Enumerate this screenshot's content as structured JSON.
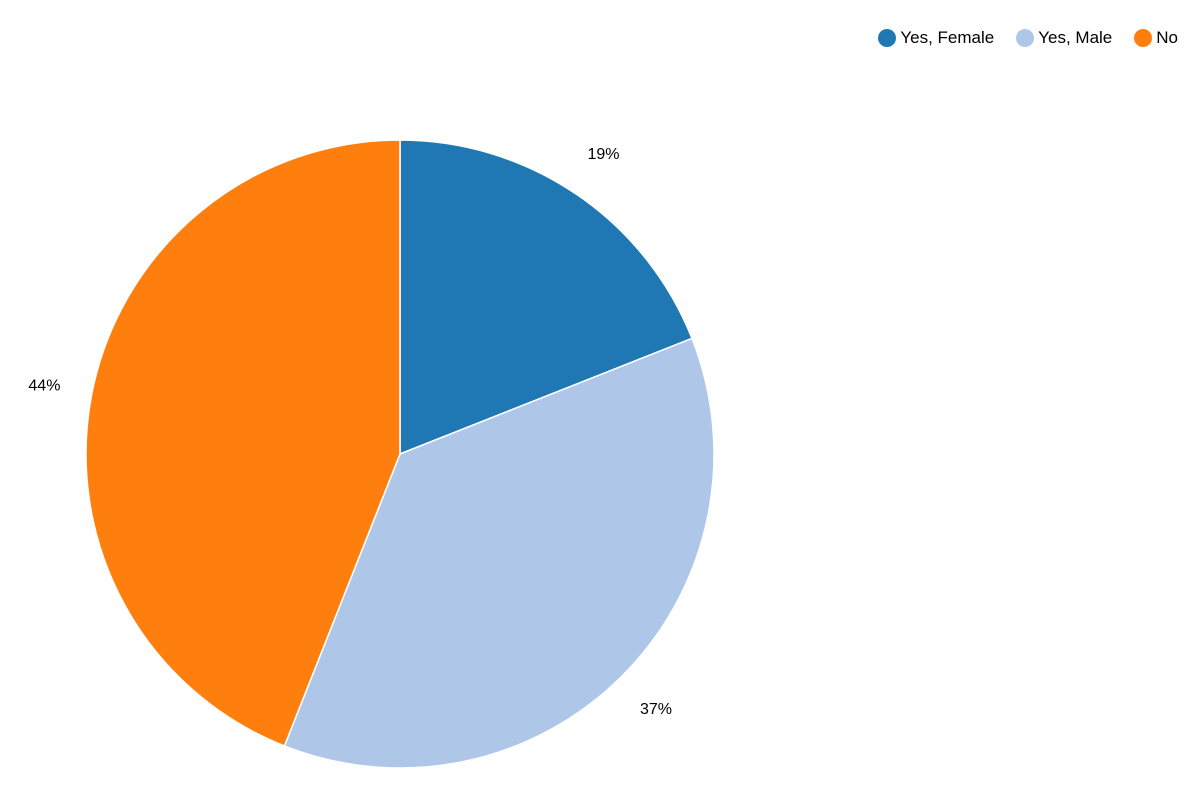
{
  "chart_data": {
    "type": "pie",
    "categories": [
      "Yes, Female",
      "Yes, Male",
      "No"
    ],
    "values": [
      19,
      37,
      44
    ],
    "labels": [
      "19%",
      "37%",
      "44%"
    ],
    "colors": [
      "#1f77b4",
      "#aec7e8",
      "#ff7f0e"
    ],
    "legend_position": "top-right"
  }
}
